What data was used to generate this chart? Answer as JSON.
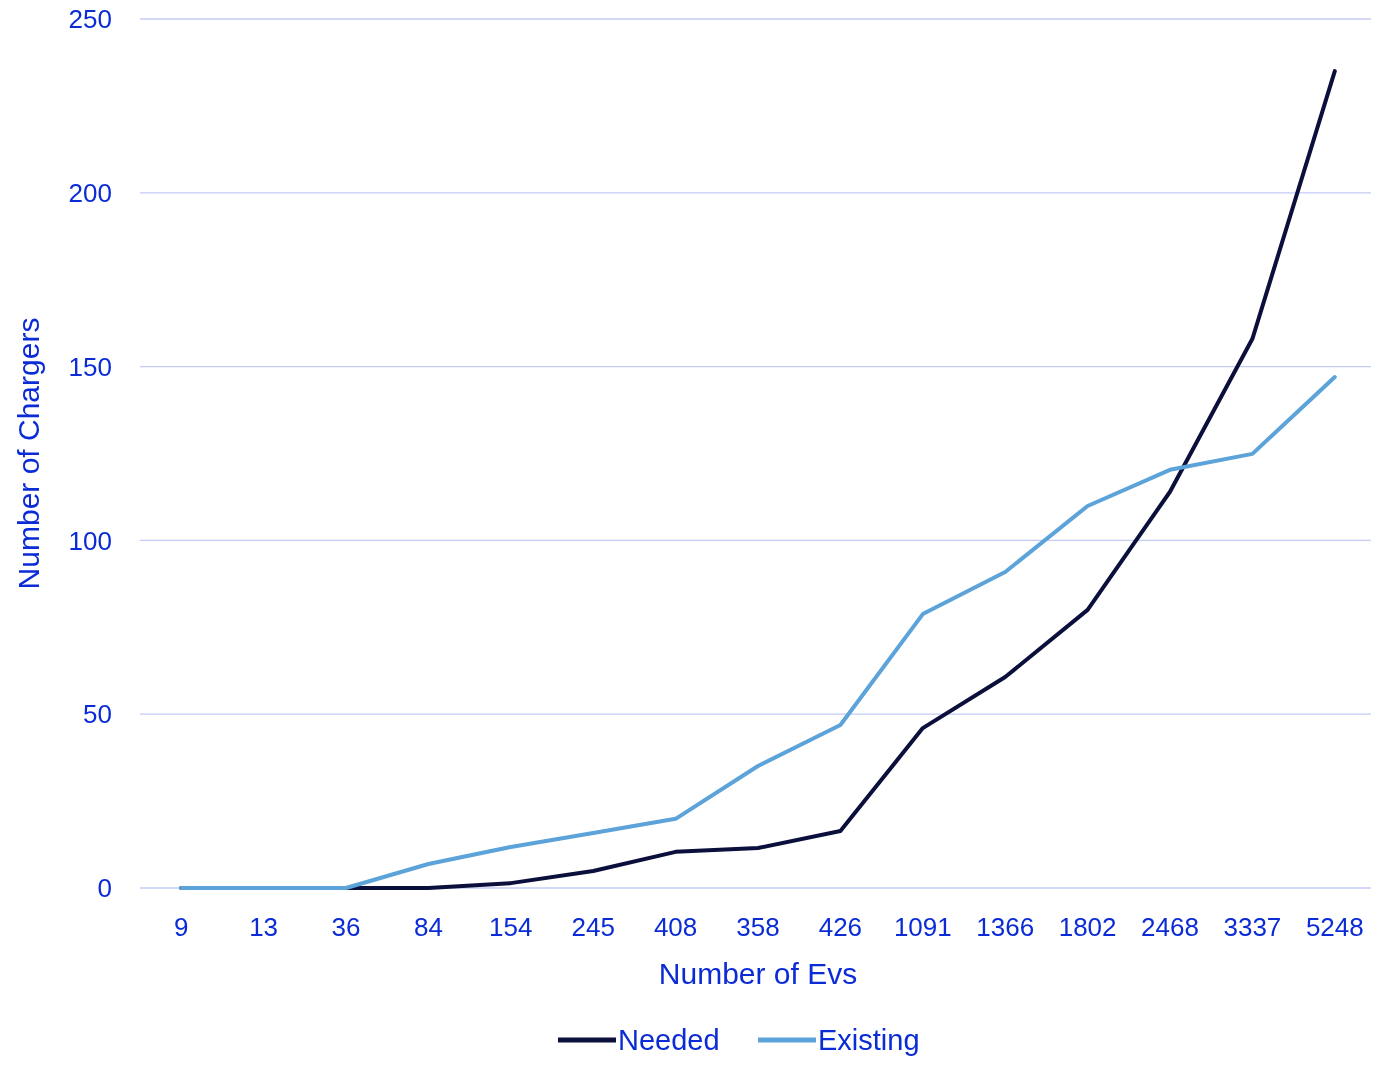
{
  "chart_data": {
    "type": "line",
    "xlabel": "Number of Evs",
    "ylabel": "Number of Chargers",
    "categories": [
      "9",
      "13",
      "36",
      "84",
      "154",
      "245",
      "408",
      "358",
      "426",
      "1091",
      "1366",
      "1802",
      "2468",
      "3337",
      "5248"
    ],
    "series": [
      {
        "name": "Needed",
        "color": "#0b0f3b",
        "values": [
          0,
          0,
          0,
          0,
          1.4,
          4.9,
          10.4,
          11.5,
          16.4,
          46,
          60.7,
          80,
          114,
          158,
          235
        ]
      },
      {
        "name": "Existing",
        "color": "#5ba3d9",
        "values": [
          0,
          0,
          0,
          6.9,
          11.8,
          15.8,
          19.9,
          35.1,
          46.9,
          78.8,
          90.9,
          109.9,
          120.3,
          124.9,
          147
        ]
      }
    ],
    "ylim": [
      0,
      250
    ],
    "yticks": [
      0,
      50,
      100,
      150,
      200,
      250
    ],
    "grid": "y",
    "legend": "bottom",
    "marker": "none",
    "line_style": "solid"
  }
}
